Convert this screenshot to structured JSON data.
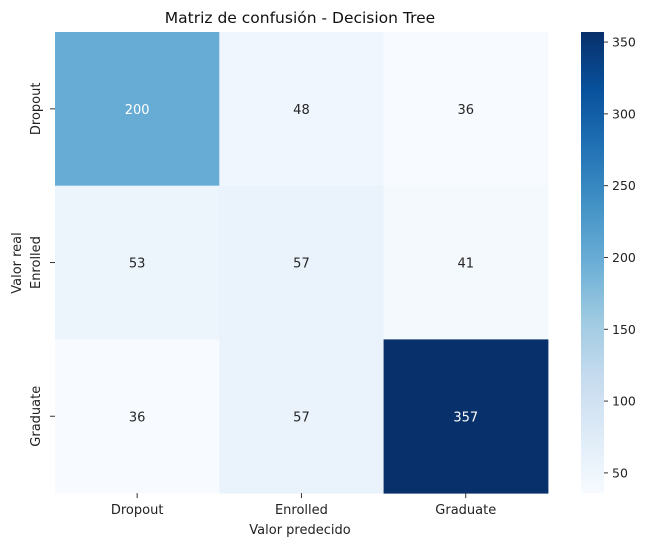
{
  "chart_data": {
    "type": "heatmap",
    "title": "Matriz de confusión - Decision Tree",
    "xlabel": "Valor predecido",
    "ylabel": "Valor real",
    "x_categories": [
      "Dropout",
      "Enrolled",
      "Graduate"
    ],
    "y_categories": [
      "Dropout",
      "Enrolled",
      "Graduate"
    ],
    "values": [
      [
        200,
        48,
        36
      ],
      [
        53,
        57,
        41
      ],
      [
        36,
        57,
        357
      ]
    ],
    "colormap": "Blues",
    "colorbar": {
      "range": [
        36,
        357
      ],
      "ticks": [
        50,
        100,
        150,
        200,
        250,
        300,
        350
      ]
    }
  }
}
